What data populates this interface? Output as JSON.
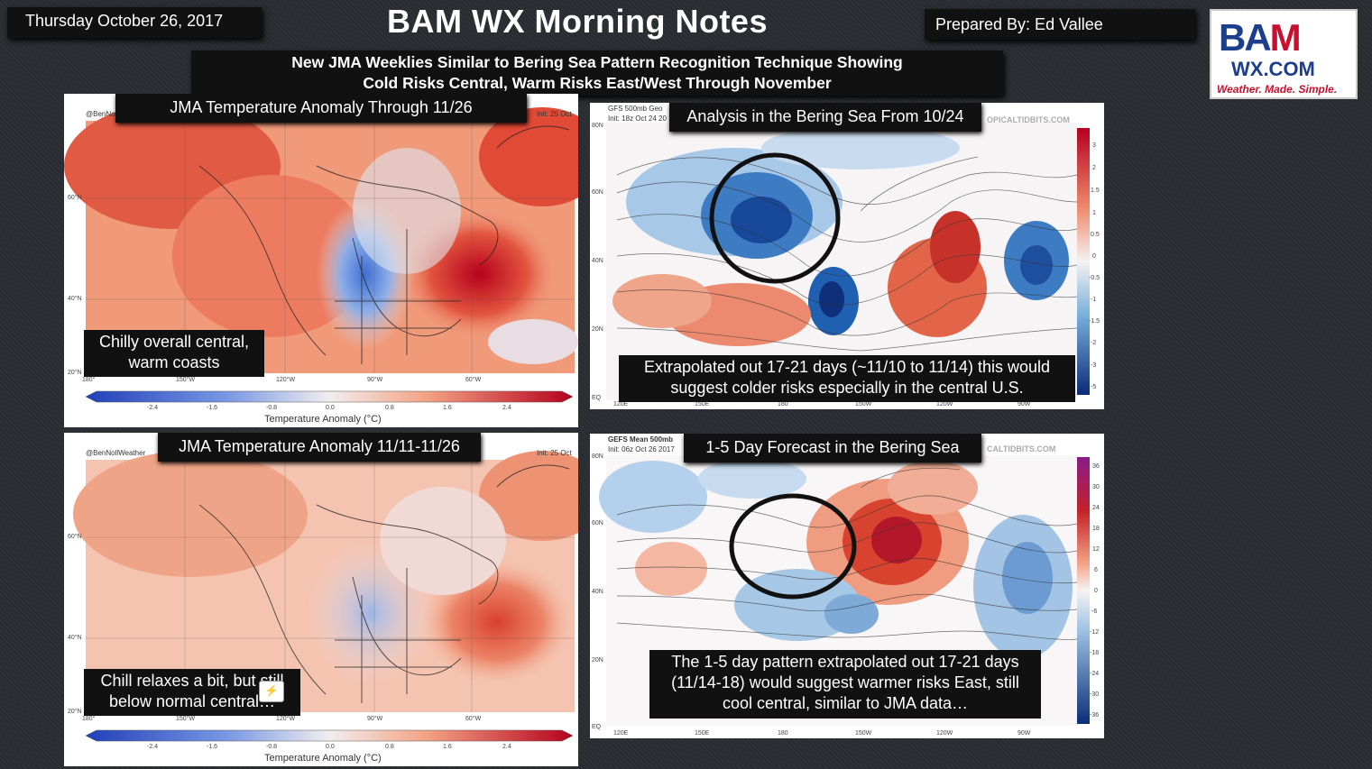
{
  "header": {
    "date": "Thursday October 26, 2017",
    "title": "BAM WX Morning Notes",
    "prepared_by": "Prepared By: Ed Vallee"
  },
  "logo": {
    "line1_a": "BA",
    "line1_b": "M",
    "line2": "WX.COM",
    "tagline": "Weather. Made. Simple."
  },
  "subtitle": {
    "line1": "New JMA Weeklies Similar to Bering Sea Pattern Recognition Technique Showing",
    "line2": "Cold Risks Central, Warm Risks East/West Through November"
  },
  "panels": {
    "tl": {
      "caption": "JMA Temperature Anomaly Through 11/26",
      "credit": "@BenNo",
      "init": "Init: 25 Oct",
      "note_line1": "Chilly overall central,",
      "note_line2": "warm coasts",
      "legend": "Temperature Anomaly (°C)",
      "lat": [
        "60°N",
        "40°N",
        "20°N"
      ],
      "lon": [
        "180°",
        "150°W",
        "120°W",
        "90°W",
        "60°W"
      ],
      "scale": [
        "-2.4",
        "-1.6",
        "-0.8",
        "0.0",
        "0.8",
        "1.6",
        "2.4"
      ]
    },
    "tr": {
      "caption": "Analysis in the Bering Sea From 10/24",
      "model": "GFS 500mb Geo",
      "init": "Init: 18z Oct 24 20",
      "site": "OPICALTIDBITS.COM",
      "note_line1": "Extrapolated out 17-21 days (~11/10 to 11/14) this would",
      "note_line2": "suggest colder risks especially in the central U.S.",
      "lat": [
        "80N",
        "60N",
        "40N",
        "20N",
        "EQ"
      ],
      "lon": [
        "120E",
        "150E",
        "180",
        "150W",
        "120W",
        "90W"
      ],
      "scale": [
        "3",
        "2",
        "1.5",
        "1",
        "0.5",
        "0",
        "-0.5",
        "-1",
        "-1.5",
        "-2",
        "-3",
        "-5"
      ]
    },
    "bl": {
      "caption": "JMA Temperature Anomaly 11/11-11/26",
      "credit": "@BenNollWeather",
      "init": "Init: 25 Oct",
      "note_line1": "Chill relaxes a bit, but still",
      "note_line2": "below normal central…",
      "legend": "Temperature Anomaly (°C)",
      "lat": [
        "60°N",
        "40°N",
        "20°N"
      ],
      "lon": [
        "180°",
        "150°W",
        "120°W",
        "90°W",
        "60°W"
      ],
      "scale": [
        "-2.4",
        "-1.6",
        "-0.8",
        "0.0",
        "0.8",
        "1.6",
        "2.4"
      ]
    },
    "br": {
      "caption": "1-5 Day Forecast in the Bering Sea",
      "model": "GEFS Mean 500mb",
      "init": "Init: 06z Oct 26 2017",
      "site": "CALTIDBITS.COM",
      "note_line1": "The 1-5 day pattern extrapolated out 17-21 days",
      "note_line2": "(11/14-18) would suggest warmer risks East, still",
      "note_line3": "cool central, similar to JMA data…",
      "lat": [
        "80N",
        "60N",
        "40N",
        "20N",
        "EQ"
      ],
      "lon": [
        "120E",
        "150E",
        "180",
        "150W",
        "120W",
        "90W"
      ],
      "scale": [
        "36",
        "30",
        "24",
        "18",
        "12",
        "6",
        "0",
        "-6",
        "-12",
        "-18",
        "-24",
        "-30",
        "-36"
      ]
    }
  },
  "colors": {
    "warm": "#d7301f",
    "cold": "#2b6cc4",
    "dark_box": "#111111"
  }
}
